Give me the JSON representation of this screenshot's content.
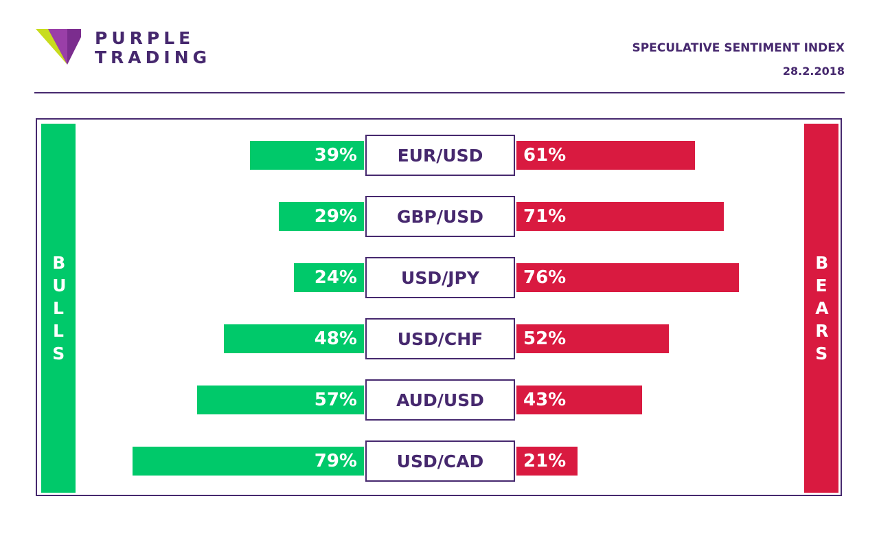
{
  "brand": {
    "line1": "PURPLE",
    "line2": "TRADING",
    "colors": {
      "purple": "#46286e",
      "mark_purple": "#7b2d8e",
      "mark_lime": "#c8dc1e"
    }
  },
  "header": {
    "title": "SPECULATIVE SENTIMENT INDEX",
    "date": "28.2.2018"
  },
  "side_labels": {
    "bulls": "BULLS",
    "bears": "BEARS"
  },
  "colors": {
    "bull": "#00c96a",
    "bear": "#d91a40",
    "frame": "#46286e"
  },
  "chart_data": {
    "type": "bar",
    "orientation": "horizontal-diverging",
    "categories": [
      "EUR/USD",
      "GBP/USD",
      "USD/JPY",
      "USD/CHF",
      "AUD/USD",
      "USD/CAD"
    ],
    "series": [
      {
        "name": "BULLS",
        "values": [
          39,
          29,
          24,
          48,
          57,
          79
        ],
        "labels": [
          "39%",
          "29%",
          "24%",
          "48%",
          "57%",
          "79%"
        ]
      },
      {
        "name": "BEARS",
        "values": [
          61,
          71,
          76,
          52,
          43,
          21
        ],
        "labels": [
          "61%",
          "71%",
          "76%",
          "52%",
          "43%",
          "21%"
        ]
      }
    ],
    "unit": "%",
    "xlim": [
      0,
      100
    ],
    "title": "SPECULATIVE SENTIMENT INDEX",
    "legend": "sides"
  }
}
